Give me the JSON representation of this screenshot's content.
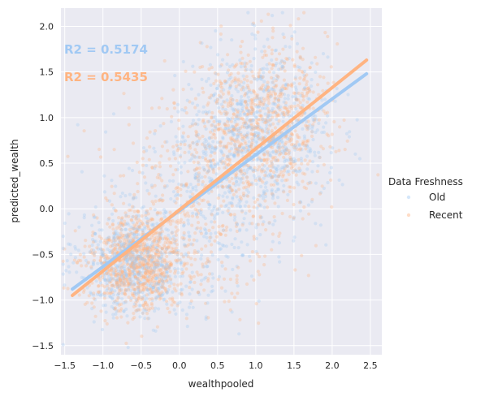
{
  "chart_data": {
    "type": "scatter",
    "xlabel": "wealthpooled",
    "ylabel": "predicted_wealth",
    "xlim": [
      -1.55,
      2.65
    ],
    "ylim": [
      -1.6,
      2.2
    ],
    "grid": true,
    "x_ticks": [
      -1.5,
      -1.0,
      -0.5,
      0.0,
      0.5,
      1.0,
      1.5,
      2.0,
      2.5
    ],
    "x_tick_labels": [
      "−1.5",
      "−1.0",
      "−0.5",
      "0.0",
      "0.5",
      "1.0",
      "1.5",
      "2.0",
      "2.5"
    ],
    "y_ticks": [
      -1.5,
      -1.0,
      -0.5,
      0.0,
      0.5,
      1.0,
      1.5,
      2.0
    ],
    "y_tick_labels": [
      "−1.5",
      "−1.0",
      "−0.5",
      "0.0",
      "0.5",
      "1.0",
      "1.5",
      "2.0"
    ],
    "legend": {
      "title": "Data Freshness",
      "placement": "right",
      "entries": [
        "Old",
        "Recent"
      ]
    },
    "series": [
      {
        "name": "Old",
        "color": "#a1c9f4",
        "regression": {
          "x": [
            -1.4,
            2.45
          ],
          "y": [
            -0.88,
            1.48
          ]
        },
        "clusters": [
          {
            "cx": -0.6,
            "cy": -0.6,
            "sx": 0.35,
            "sy": 0.28,
            "n": 650
          },
          {
            "cx": 1.05,
            "cy": 0.85,
            "sx": 0.45,
            "sy": 0.45,
            "n": 750
          },
          {
            "cx": 0.3,
            "cy": 0.05,
            "sx": 0.6,
            "sy": 0.55,
            "n": 350
          }
        ]
      },
      {
        "name": "Recent",
        "color": "#ffb482",
        "regression": {
          "x": [
            -1.4,
            2.45
          ],
          "y": [
            -0.95,
            1.63
          ]
        },
        "clusters": [
          {
            "cx": -0.55,
            "cy": -0.6,
            "sx": 0.3,
            "sy": 0.27,
            "n": 900
          },
          {
            "cx": 1.1,
            "cy": 0.95,
            "sx": 0.42,
            "sy": 0.43,
            "n": 800
          },
          {
            "cx": 0.25,
            "cy": 0.1,
            "sx": 0.6,
            "sy": 0.55,
            "n": 400
          }
        ]
      }
    ],
    "annotations": [
      {
        "text": "R2 = 0.5174",
        "color": "#a1c9f4"
      },
      {
        "text": "R2 = 0.5435",
        "color": "#ffb482"
      }
    ]
  }
}
